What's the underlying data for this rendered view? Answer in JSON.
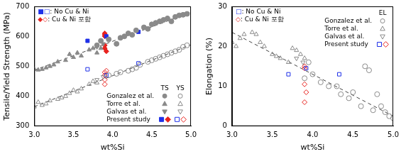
{
  "chart_data": [
    {
      "type": "scatter",
      "x_label": "wt%Si",
      "y_label": "Tensile/Yield Strength (MPa)",
      "xlim": [
        3,
        5
      ],
      "xticks": [
        {
          "value": 3,
          "label": "3.0"
        },
        {
          "value": 3.5,
          "label": "3.5"
        },
        {
          "value": 4,
          "label": "4.0"
        },
        {
          "value": 4.5,
          "label": "4.5"
        },
        {
          "value": 5,
          "label": "5.0"
        }
      ],
      "ylim": [
        300,
        700
      ],
      "yticks": [
        300,
        400,
        500,
        600,
        700
      ],
      "grid": false,
      "legend": "lower right",
      "legend_columns": [
        "TS",
        "YS"
      ],
      "annotations": [
        {
          "text": "■□: No Cu & Ni",
          "color": "#1f30e8"
        },
        {
          "text": "◆◇: Cu & Ni 포함",
          "color": "#e8231f"
        }
      ],
      "series": [
        {
          "type": "line",
          "line_style": "dashed",
          "color": "#444444",
          "x": [
            3,
            5
          ],
          "values": [
            487,
            680
          ]
        },
        {
          "type": "line",
          "line_style": "dashed",
          "color": "#444444",
          "x": [
            3,
            5
          ],
          "values": [
            365,
            572
          ]
        },
        {
          "name": "Gonzalez et al.",
          "column": "TS",
          "marker": "circle",
          "color": "#8a8a8a",
          "x": [
            3.8,
            3.85,
            3.95,
            4.05,
            4.1,
            4.15,
            4.2,
            4.25,
            4.3,
            4.4,
            4.45,
            4.5,
            4.55,
            4.6,
            4.65,
            4.7,
            4.75,
            4.8,
            4.85,
            4.9,
            4.95
          ],
          "values": [
            570,
            585,
            590,
            575,
            595,
            600,
            610,
            605,
            620,
            630,
            625,
            640,
            645,
            650,
            655,
            660,
            650,
            665,
            670,
            672,
            675
          ]
        },
        {
          "name": "Gonzalez et al.",
          "column": "YS",
          "marker": "circle-open",
          "color": "#8a8a8a",
          "x": [
            3.95,
            4.05,
            4.1,
            4.2,
            4.25,
            4.3,
            4.35,
            4.45,
            4.5,
            4.55,
            4.6,
            4.65,
            4.7,
            4.75,
            4.8,
            4.85,
            4.9,
            4.95
          ],
          "values": [
            470,
            475,
            480,
            485,
            490,
            495,
            505,
            515,
            520,
            525,
            530,
            535,
            540,
            545,
            550,
            555,
            565,
            570
          ]
        },
        {
          "name": "Torre et al.",
          "column": "TS",
          "marker": "triangle",
          "color": "#8a8a8a",
          "x": [
            3.0,
            3.05,
            3.1,
            3.15,
            3.2,
            3.25,
            3.3,
            3.4,
            3.45,
            3.5,
            3.55,
            3.6,
            3.7,
            3.75,
            3.8,
            3.85
          ],
          "values": [
            490,
            488,
            490,
            495,
            500,
            505,
            515,
            520,
            540,
            530,
            545,
            535,
            555,
            560,
            545,
            560
          ]
        },
        {
          "name": "Torre et al.",
          "column": "YS",
          "marker": "triangle-open",
          "color": "#8a8a8a",
          "x": [
            3.0,
            3.05,
            3.1,
            3.15,
            3.2,
            3.3,
            3.35,
            3.4,
            3.45,
            3.5,
            3.55,
            3.6,
            3.7,
            3.75,
            3.8
          ],
          "values": [
            365,
            380,
            370,
            375,
            385,
            390,
            395,
            400,
            410,
            420,
            415,
            425,
            440,
            450,
            445
          ]
        },
        {
          "name": "Galvas et al.",
          "column": "TS",
          "marker": "triangle-down",
          "color": "#8a8a8a",
          "x": [
            3.8,
            3.88
          ],
          "values": [
            565,
            575
          ]
        },
        {
          "name": "Galvas et al.",
          "column": "YS",
          "marker": "triangle-down-open",
          "color": "#8a8a8a",
          "x": [
            3.8,
            3.88
          ],
          "values": [
            455,
            465
          ]
        },
        {
          "name": "Present study",
          "column": "TS",
          "marker": "square",
          "color": "#1f30e8",
          "x": [
            3.68,
            3.92,
            4.33
          ],
          "values": [
            585,
            600,
            615
          ]
        },
        {
          "name": "Present study",
          "column": "TS",
          "marker": "diamond",
          "color": "#e8231f",
          "x": [
            3.9,
            3.9,
            3.9,
            3.9,
            3.9,
            3.92
          ],
          "values": [
            560,
            570,
            600,
            605,
            610,
            550
          ]
        },
        {
          "name": "Present study",
          "column": "YS",
          "marker": "square-open",
          "color": "#1f30e8",
          "x": [
            3.68,
            3.92,
            4.33
          ],
          "values": [
            490,
            470,
            510
          ]
        },
        {
          "name": "Present study",
          "column": "YS",
          "marker": "diamond-open",
          "color": "#e8231f",
          "x": [
            3.9,
            3.9,
            3.9,
            3.9,
            3.92
          ],
          "values": [
            440,
            455,
            470,
            480,
            485
          ]
        }
      ]
    },
    {
      "type": "scatter",
      "x_label": "wt%Si",
      "y_label": "Elongation (%)",
      "xlim": [
        3,
        5
      ],
      "xticks": [
        {
          "value": 3,
          "label": "3.0"
        },
        {
          "value": 3.5,
          "label": "3.5"
        },
        {
          "value": 4,
          "label": "4.0"
        },
        {
          "value": 4.5,
          "label": "4.5"
        },
        {
          "value": 5,
          "label": "5.0"
        }
      ],
      "ylim": [
        0,
        30
      ],
      "yticks": [
        0,
        10,
        20,
        30
      ],
      "grid": false,
      "legend": "upper right",
      "legend_columns": [
        "EL"
      ],
      "annotations": [
        {
          "text": "□: No Cu & Ni",
          "color": "#1f30e8"
        },
        {
          "text": "◇: Cu & Ni 포함",
          "color": "#e8231f"
        }
      ],
      "series": [
        {
          "type": "line",
          "line_style": "dashed",
          "color": "#444444",
          "x": [
            3,
            5
          ],
          "values": [
            23.5,
            2.5
          ]
        },
        {
          "name": "Gonzalez et al.",
          "column": "EL",
          "marker": "circle-open",
          "color": "#8a8a8a",
          "x": [
            3.9,
            3.95,
            4.0,
            4.1,
            4.2,
            4.3,
            4.35,
            4.45,
            4.5,
            4.6,
            4.65,
            4.7,
            4.75,
            4.8,
            4.85,
            4.9,
            4.95,
            5.0
          ],
          "values": [
            12,
            16,
            13,
            11,
            10,
            10,
            8,
            7,
            8.5,
            5,
            15,
            14,
            4,
            8,
            5,
            3.5,
            2.5,
            2
          ]
        },
        {
          "name": "Torre et al.",
          "column": "EL",
          "marker": "triangle-open",
          "color": "#8a8a8a",
          "x": [
            3.0,
            3.05,
            3.1,
            3.15,
            3.25,
            3.3,
            3.35,
            3.4,
            3.5,
            3.55,
            3.6,
            3.7,
            3.75,
            3.8,
            3.85,
            3.9
          ],
          "values": [
            21,
            20,
            22,
            23,
            23.5,
            23,
            21,
            20,
            18,
            17.5,
            17,
            16,
            19.5,
            19,
            18,
            17
          ]
        },
        {
          "name": "Galvas et al.",
          "column": "EL",
          "marker": "triangle-down-open",
          "color": "#8a8a8a",
          "x": [
            3.8,
            3.88
          ],
          "values": [
            17,
            16
          ]
        },
        {
          "name": "Present study",
          "column": "EL",
          "marker": "square-open",
          "color": "#1f30e8",
          "x": [
            3.7,
            3.92,
            4.33
          ],
          "values": [
            13,
            14.5,
            13
          ]
        },
        {
          "name": "Present study",
          "column": "EL",
          "marker": "diamond-open",
          "color": "#e8231f",
          "x": [
            3.9,
            3.9,
            3.9,
            3.92,
            3.9
          ],
          "values": [
            15,
            10.5,
            6,
            8.5,
            14.5
          ]
        }
      ]
    }
  ]
}
